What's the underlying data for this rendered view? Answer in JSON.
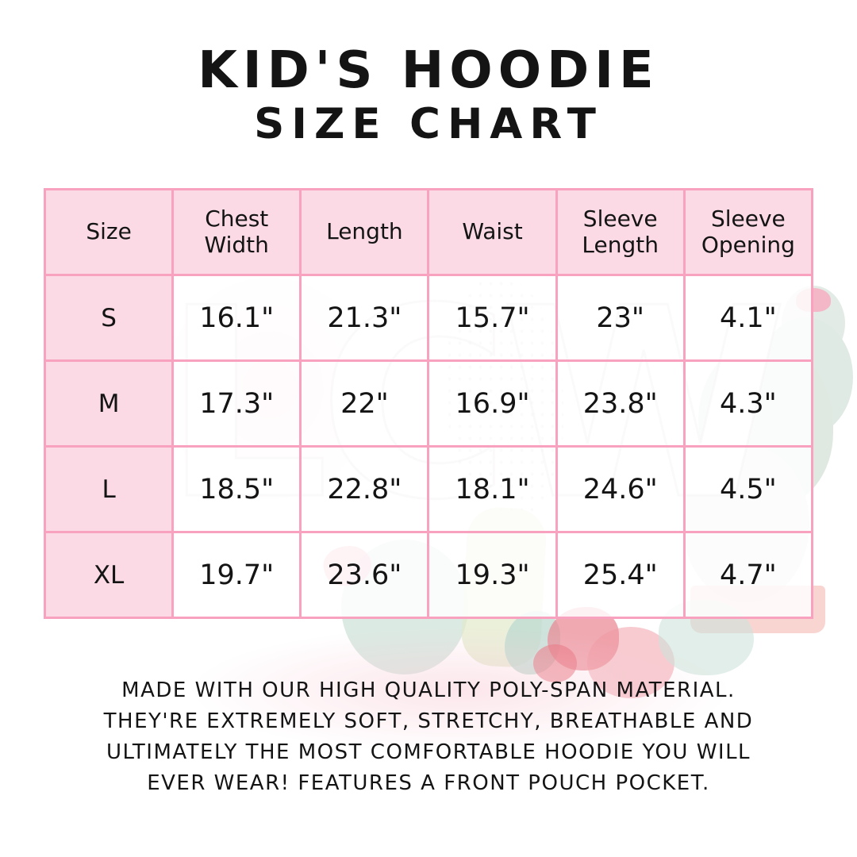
{
  "title": {
    "line1": "KID'S HOODIE",
    "line2": "SIZE CHART"
  },
  "table": {
    "headers": [
      "Size",
      "Chest Width",
      "Length",
      "Waist",
      "Sleeve Length",
      "Sleeve Opening"
    ],
    "rows": [
      {
        "size": "S",
        "values": [
          "16.1\"",
          "21.3\"",
          "15.7\"",
          "23\"",
          "4.1\""
        ]
      },
      {
        "size": "M",
        "values": [
          "17.3\"",
          "22\"",
          "16.9\"",
          "23.8\"",
          "4.3\""
        ]
      },
      {
        "size": "L",
        "values": [
          "18.5\"",
          "22.8\"",
          "18.1\"",
          "24.6\"",
          "4.5\""
        ]
      },
      {
        "size": "XL",
        "values": [
          "19.7\"",
          "23.6\"",
          "19.3\"",
          "25.4\"",
          "4.7\""
        ]
      }
    ]
  },
  "description": {
    "lines": [
      "MADE WITH OUR HIGH QUALITY POLY-SPAN MATERIAL.",
      "THEY'RE EXTREMELY SOFT, STRETCHY, BREATHABLE AND",
      "ULTIMATELY THE MOST COMFORTABLE HOODIE YOU WILL",
      "EVER WEAR! FEATURES A FRONT POUCH POCKET."
    ]
  },
  "watermark": {
    "letters": "LCW"
  },
  "colors": {
    "table_border_pink": "#f8a2c0",
    "table_fill_pink": "#fbdae6",
    "text_ink": "#141414",
    "watermark_sage": "#dfe9e2",
    "watermark_teal": "#cfe3da",
    "watermark_red_flower": "#ea8490",
    "watermark_pink_flower": "#f6aec2",
    "watermark_pot_pink": "#f7cbc7",
    "background": "#ffffff"
  },
  "chart_data": {
    "type": "table",
    "title": "KID'S HOODIE SIZE CHART",
    "columns": [
      "Size",
      "Chest Width",
      "Length",
      "Waist",
      "Sleeve Length",
      "Sleeve Opening"
    ],
    "rows": [
      [
        "S",
        "16.1\"",
        "21.3\"",
        "15.7\"",
        "23\"",
        "4.1\""
      ],
      [
        "M",
        "17.3\"",
        "22\"",
        "16.9\"",
        "23.8\"",
        "4.3\""
      ],
      [
        "L",
        "18.5\"",
        "22.8\"",
        "18.1\"",
        "24.6\"",
        "4.5\""
      ],
      [
        "XL",
        "19.7\"",
        "23.6\"",
        "19.3\"",
        "25.4\"",
        "4.7\""
      ]
    ],
    "units": "inches"
  }
}
